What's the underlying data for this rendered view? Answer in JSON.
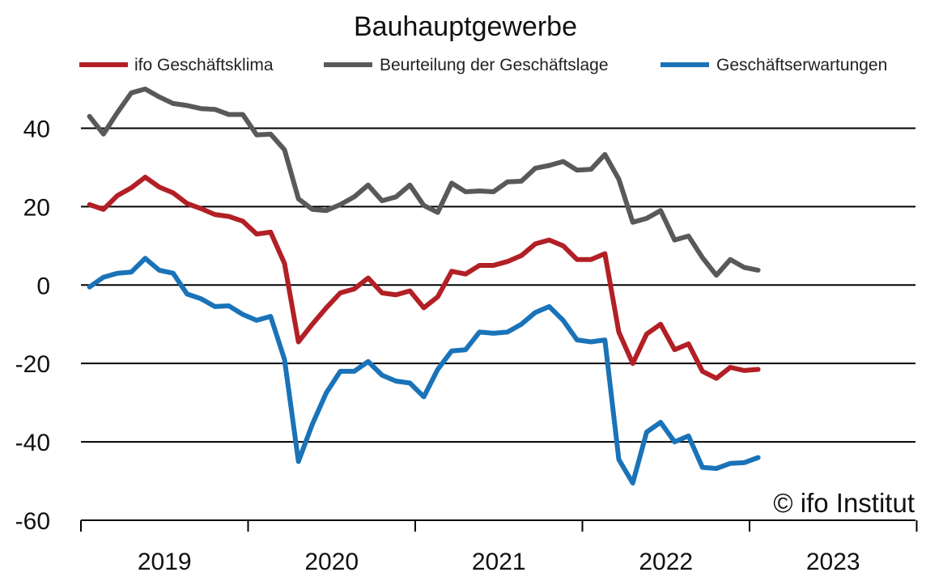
{
  "chart_data": {
    "type": "line",
    "title": "Bauhauptgewerbe",
    "watermark": "© ifo Institut",
    "xlabel": "",
    "ylabel": "",
    "ylim": [
      -60,
      50
    ],
    "yticks": [
      40,
      20,
      0,
      -20,
      -40,
      -60
    ],
    "xticks": [
      "2019",
      "2020",
      "2021",
      "2022",
      "2023"
    ],
    "x_years": [
      2019,
      2023
    ],
    "gridlines": "horizontal",
    "legend": "top",
    "months": [
      "2019-01",
      "2019-02",
      "2019-03",
      "2019-04",
      "2019-05",
      "2019-06",
      "2019-07",
      "2019-08",
      "2019-09",
      "2019-10",
      "2019-11",
      "2019-12",
      "2020-01",
      "2020-02",
      "2020-03",
      "2020-04",
      "2020-05",
      "2020-06",
      "2020-07",
      "2020-08",
      "2020-09",
      "2020-10",
      "2020-11",
      "2020-12",
      "2021-01",
      "2021-02",
      "2021-03",
      "2021-04",
      "2021-05",
      "2021-06",
      "2021-07",
      "2021-08",
      "2021-09",
      "2021-10",
      "2021-11",
      "2021-12",
      "2022-01",
      "2022-02",
      "2022-03",
      "2022-04",
      "2022-05",
      "2022-06",
      "2022-07",
      "2022-08",
      "2022-09",
      "2022-10",
      "2022-11",
      "2022-12",
      "2023-01"
    ],
    "series": [
      {
        "name": "ifo Geschäftsklima",
        "color": "#b22025",
        "values": [
          20.5,
          19.3,
          22.8,
          24.8,
          27.5,
          25.0,
          23.5,
          20.8,
          19.5,
          18.0,
          17.5,
          16.3,
          13.0,
          13.5,
          5.5,
          -14.5,
          -10.0,
          -5.8,
          -2.0,
          -1.0,
          1.8,
          -2.0,
          -2.5,
          -1.5,
          -5.8,
          -3.0,
          3.5,
          2.8,
          5.0,
          5.0,
          6.0,
          7.5,
          10.5,
          11.5,
          10.0,
          6.5,
          6.5,
          8.0,
          -12.0,
          -20.0,
          -12.5,
          -10.0,
          -16.5,
          -15.0,
          -22.0,
          -23.8,
          -21.0,
          -21.8,
          -21.5
        ]
      },
      {
        "name": "Beurteilung der Geschäftslage",
        "color": "#595959",
        "values": [
          43.0,
          38.5,
          44.0,
          49.0,
          50.0,
          48.0,
          46.3,
          45.8,
          45.0,
          44.8,
          43.5,
          43.5,
          38.3,
          38.5,
          34.5,
          22.0,
          19.3,
          19.0,
          20.5,
          22.5,
          25.5,
          21.5,
          22.5,
          25.5,
          20.3,
          18.5,
          26.0,
          23.8,
          24.0,
          23.8,
          26.3,
          26.5,
          29.8,
          30.5,
          31.5,
          29.3,
          29.5,
          33.3,
          27.0,
          16.0,
          17.0,
          19.0,
          11.5,
          12.5,
          7.0,
          2.5,
          6.5,
          4.5,
          3.8
        ]
      },
      {
        "name": "Geschäftserwartungen",
        "color": "#1a73b8",
        "values": [
          -0.5,
          2.0,
          3.0,
          3.3,
          6.8,
          3.8,
          3.0,
          -2.3,
          -3.5,
          -5.5,
          -5.3,
          -7.5,
          -9.0,
          -8.0,
          -19.0,
          -45.0,
          -35.5,
          -27.5,
          -22.0,
          -22.0,
          -19.5,
          -23.0,
          -24.5,
          -25.0,
          -28.5,
          -21.5,
          -16.8,
          -16.5,
          -12.0,
          -12.3,
          -12.0,
          -10.0,
          -7.0,
          -5.5,
          -9.0,
          -14.0,
          -14.5,
          -14.0,
          -44.5,
          -50.5,
          -37.5,
          -35.0,
          -40.0,
          -38.5,
          -46.5,
          -46.8,
          -45.5,
          -45.3,
          -44.0
        ]
      }
    ]
  }
}
